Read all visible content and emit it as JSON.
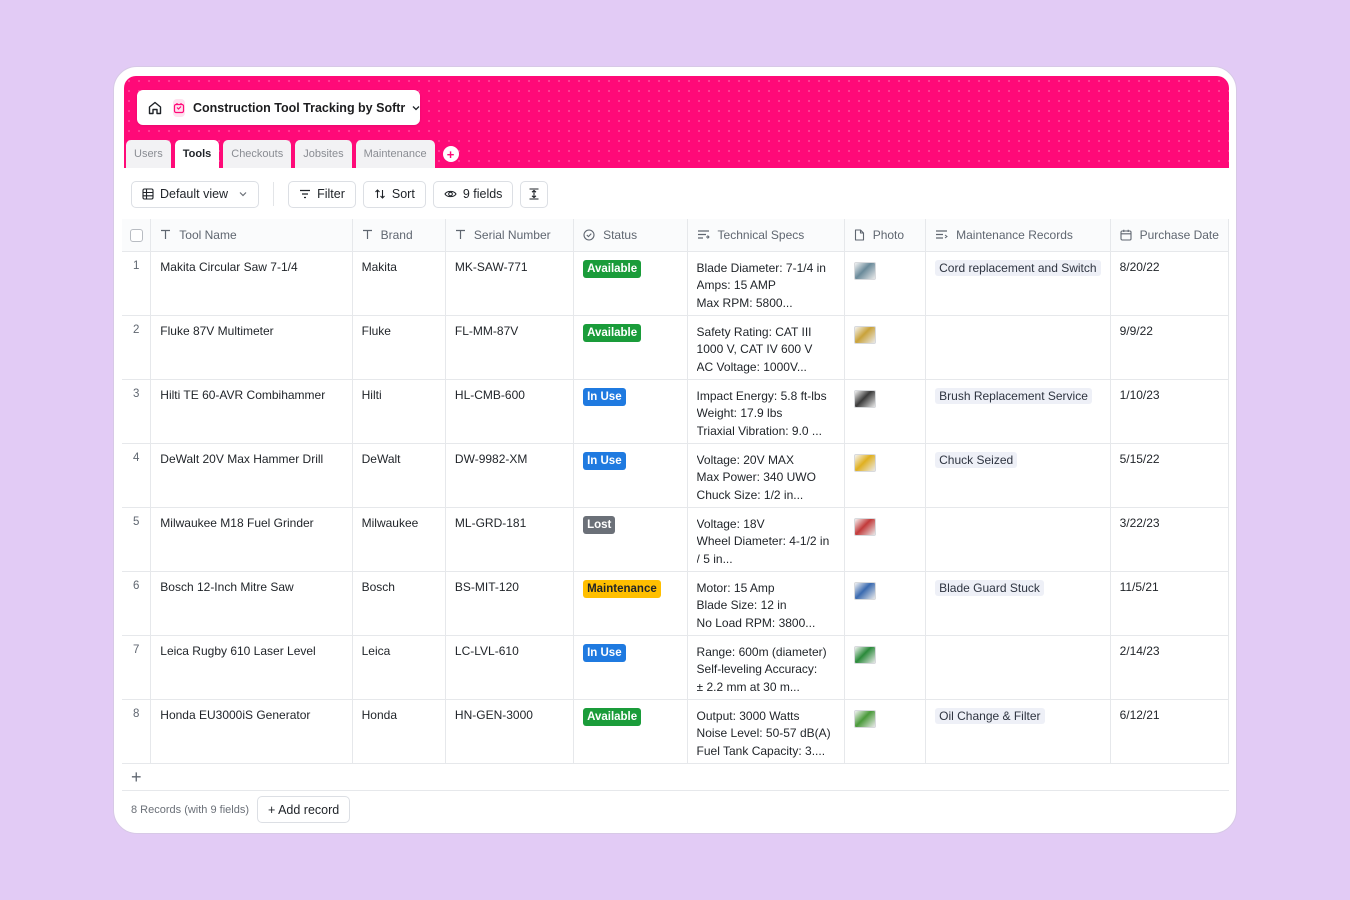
{
  "app": {
    "title": "Construction Tool Tracking by Softr",
    "brand_color": "#ff0a78"
  },
  "tabs": [
    {
      "label": "Users",
      "active": false
    },
    {
      "label": "Tools",
      "active": true
    },
    {
      "label": "Checkouts",
      "active": false
    },
    {
      "label": "Jobsites",
      "active": false
    },
    {
      "label": "Maintenance",
      "active": false
    }
  ],
  "toolbar": {
    "view_label": "Default view",
    "filter_label": "Filter",
    "sort_label": "Sort",
    "fields_label": "9 fields"
  },
  "columns": {
    "tool_name": "Tool Name",
    "brand": "Brand",
    "serial": "Serial Number",
    "status": "Status",
    "specs": "Technical Specs",
    "photo": "Photo",
    "maintenance": "Maintenance Records",
    "purchase_date": "Purchase Date"
  },
  "status_colors": {
    "Available": "#1a9c3a",
    "In Use": "#1f7ae0",
    "Lost": "#6b7078",
    "Maintenance": "#ffbf00"
  },
  "rows": [
    {
      "num": "1",
      "tool_name": "Makita Circular Saw 7-1/4",
      "brand": "Makita",
      "serial": "MK-SAW-771",
      "status": "Available",
      "specs": [
        "Blade Diameter: 7-1/4 in",
        "Amps: 15 AMP",
        "Max RPM: 5800..."
      ],
      "photo_color": "#6a8a9a",
      "maintenance": "Cord replacement and Switch",
      "purchase_date": "8/20/22"
    },
    {
      "num": "2",
      "tool_name": "Fluke 87V Multimeter",
      "brand": "Fluke",
      "serial": "FL-MM-87V",
      "status": "Available",
      "specs": [
        "Safety Rating: CAT III",
        "1000 V, CAT IV 600 V",
        "AC Voltage: 1000V..."
      ],
      "photo_color": "#c9a23a",
      "maintenance": "",
      "purchase_date": "9/9/22"
    },
    {
      "num": "3",
      "tool_name": "Hilti TE 60-AVR Combihammer",
      "brand": "Hilti",
      "serial": "HL-CMB-600",
      "status": "In Use",
      "specs": [
        "Impact Energy: 5.8 ft-lbs",
        "Weight: 17.9 lbs",
        "Triaxial Vibration: 9.0 ..."
      ],
      "photo_color": "#3a3a3a",
      "maintenance": "Brush Replacement Service",
      "purchase_date": "1/10/23"
    },
    {
      "num": "4",
      "tool_name": "DeWalt 20V Max Hammer Drill",
      "brand": "DeWalt",
      "serial": "DW-9982-XM",
      "status": "In Use",
      "specs": [
        "Voltage: 20V MAX",
        "Max Power: 340 UWO",
        "Chuck Size: 1/2 in..."
      ],
      "photo_color": "#e0b020",
      "maintenance": "Chuck Seized",
      "purchase_date": "5/15/22"
    },
    {
      "num": "5",
      "tool_name": "Milwaukee M18 Fuel Grinder",
      "brand": "Milwaukee",
      "serial": "ML-GRD-181",
      "status": "Lost",
      "specs": [
        "Voltage: 18V",
        "Wheel Diameter: 4-1/2 in",
        "/ 5 in..."
      ],
      "photo_color": "#c23a3a",
      "maintenance": "",
      "purchase_date": "3/22/23"
    },
    {
      "num": "6",
      "tool_name": "Bosch 12-Inch Mitre Saw",
      "brand": "Bosch",
      "serial": "BS-MIT-120",
      "status": "Maintenance",
      "specs": [
        "Motor: 15 Amp",
        "Blade Size: 12 in",
        "No Load RPM: 3800..."
      ],
      "photo_color": "#3a6ab0",
      "maintenance": "Blade Guard Stuck",
      "purchase_date": "11/5/21"
    },
    {
      "num": "7",
      "tool_name": "Leica Rugby 610 Laser Level",
      "brand": "Leica",
      "serial": "LC-LVL-610",
      "status": "In Use",
      "specs": [
        "Range: 600m (diameter)",
        "Self-leveling Accuracy:",
        "± 2.2 mm at 30 m..."
      ],
      "photo_color": "#2a8a3a",
      "maintenance": "",
      "purchase_date": "2/14/23"
    },
    {
      "num": "8",
      "tool_name": "Honda EU3000iS Generator",
      "brand": "Honda",
      "serial": "HN-GEN-3000",
      "status": "Available",
      "specs": [
        "Output: 3000 Watts",
        "Noise Level: 50-57 dB(A)",
        "Fuel Tank Capacity: 3...."
      ],
      "photo_color": "#4a9a3a",
      "maintenance": "Oil Change & Filter",
      "purchase_date": "6/12/21"
    }
  ],
  "footer": {
    "count_text": "8 Records (with 9 fields)",
    "add_label": "+ Add record"
  }
}
